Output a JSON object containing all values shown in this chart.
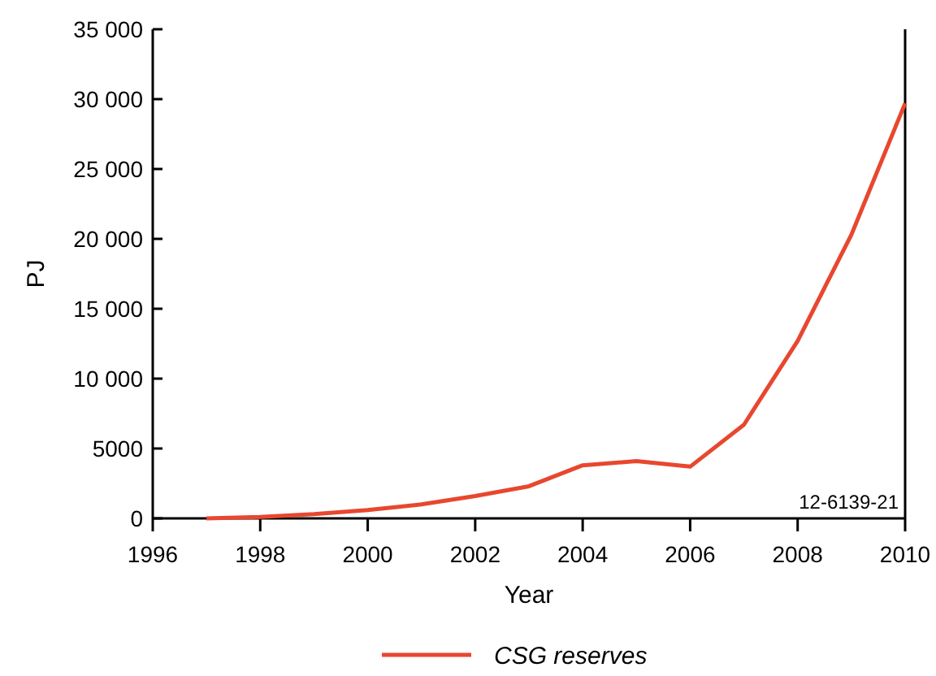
{
  "chart_data": {
    "type": "line",
    "xlabel": "Year",
    "ylabel": "PJ",
    "x": [
      1997,
      1998,
      1999,
      2000,
      2001,
      2002,
      2003,
      2004,
      2005,
      2006,
      2007,
      2008,
      2009,
      2010
    ],
    "series": [
      {
        "name": "CSG reserves",
        "color": "#e8472f",
        "values": [
          0,
          100,
          300,
          600,
          1000,
          1600,
          2300,
          3800,
          4100,
          3700,
          6700,
          12700,
          20300,
          29700
        ]
      }
    ],
    "xlim": [
      1996,
      2010
    ],
    "xticks": [
      1996,
      1998,
      2000,
      2002,
      2004,
      2006,
      2008,
      2010
    ],
    "ylim": [
      0,
      35000
    ],
    "yticks": [
      {
        "value": 0,
        "label": "0"
      },
      {
        "value": 5000,
        "label": "5000"
      },
      {
        "value": 10000,
        "label": "10 000"
      },
      {
        "value": 15000,
        "label": "15 000"
      },
      {
        "value": 20000,
        "label": "20 000"
      },
      {
        "value": 25000,
        "label": "25 000"
      },
      {
        "value": 30000,
        "label": "30 000"
      },
      {
        "value": 35000,
        "label": "35 000"
      }
    ],
    "annotations": [
      "12-6139-21"
    ],
    "legend": "bottom",
    "grid": false
  }
}
